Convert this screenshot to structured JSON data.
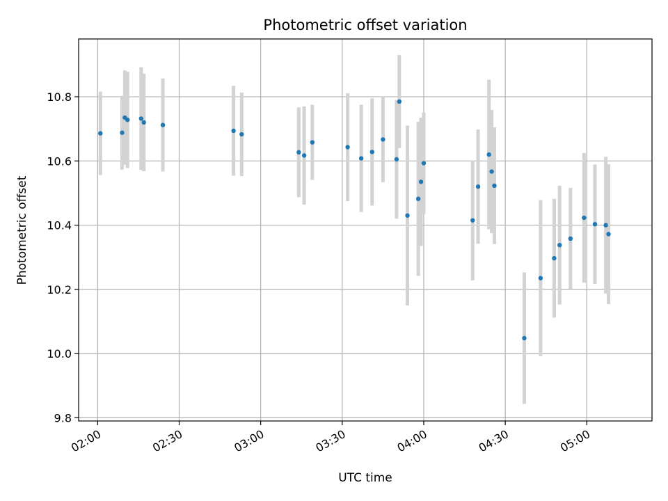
{
  "chart_data": {
    "type": "scatter",
    "title": "Photometric offset variation",
    "xlabel": "UTC time",
    "ylabel": "Photometric offset",
    "x_axis_type": "time",
    "xlim": [
      "01:53",
      "05:24"
    ],
    "ylim": [
      9.79,
      10.98
    ],
    "x_ticks": [
      "02:00",
      "02:30",
      "03:00",
      "03:30",
      "04:00",
      "04:30",
      "05:00"
    ],
    "y_ticks": [
      9.8,
      10.0,
      10.2,
      10.4,
      10.6,
      10.8
    ],
    "y_tick_labels": [
      "9.8",
      "10.0",
      "10.2",
      "10.4",
      "10.6",
      "10.8"
    ],
    "grid": true,
    "colors": {
      "point": "#1f77b4",
      "errorbar": "#d3d3d3",
      "grid": "#b0b0b0"
    },
    "series": [
      {
        "points": [
          {
            "x": "02:01",
            "y": 10.686,
            "err": 0.13
          },
          {
            "x": "02:09",
            "y": 10.688,
            "err": 0.115
          },
          {
            "x": "02:10",
            "y": 10.735,
            "err": 0.147
          },
          {
            "x": "02:11",
            "y": 10.728,
            "err": 0.15
          },
          {
            "x": "02:16",
            "y": 10.732,
            "err": 0.16
          },
          {
            "x": "02:17",
            "y": 10.72,
            "err": 0.152
          },
          {
            "x": "02:24",
            "y": 10.712,
            "err": 0.145
          },
          {
            "x": "02:50",
            "y": 10.694,
            "err": 0.14
          },
          {
            "x": "02:53",
            "y": 10.683,
            "err": 0.13
          },
          {
            "x": "03:14",
            "y": 10.627,
            "err": 0.14
          },
          {
            "x": "03:16",
            "y": 10.617,
            "err": 0.153
          },
          {
            "x": "03:19",
            "y": 10.658,
            "err": 0.117
          },
          {
            "x": "03:32",
            "y": 10.643,
            "err": 0.168
          },
          {
            "x": "03:37",
            "y": 10.608,
            "err": 0.167
          },
          {
            "x": "03:41",
            "y": 10.628,
            "err": 0.167
          },
          {
            "x": "03:45",
            "y": 10.667,
            "err": 0.133
          },
          {
            "x": "03:50",
            "y": 10.605,
            "err": 0.185
          },
          {
            "x": "03:51",
            "y": 10.785,
            "err": 0.145
          },
          {
            "x": "03:54",
            "y": 10.43,
            "err": 0.28
          },
          {
            "x": "03:58",
            "y": 10.482,
            "err": 0.24
          },
          {
            "x": "03:59",
            "y": 10.535,
            "err": 0.2
          },
          {
            "x": "04:00",
            "y": 10.593,
            "err": 0.158
          },
          {
            "x": "04:18",
            "y": 10.415,
            "err": 0.187
          },
          {
            "x": "04:20",
            "y": 10.52,
            "err": 0.178
          },
          {
            "x": "04:24",
            "y": 10.62,
            "err": 0.233
          },
          {
            "x": "04:25",
            "y": 10.567,
            "err": 0.192
          },
          {
            "x": "04:26",
            "y": 10.523,
            "err": 0.182
          },
          {
            "x": "04:37",
            "y": 10.048,
            "err": 0.205
          },
          {
            "x": "04:43",
            "y": 10.235,
            "err": 0.243
          },
          {
            "x": "04:48",
            "y": 10.297,
            "err": 0.185
          },
          {
            "x": "04:50",
            "y": 10.338,
            "err": 0.185
          },
          {
            "x": "04:54",
            "y": 10.358,
            "err": 0.158
          },
          {
            "x": "04:59",
            "y": 10.423,
            "err": 0.202
          },
          {
            "x": "05:03",
            "y": 10.403,
            "err": 0.186
          },
          {
            "x": "05:07",
            "y": 10.4,
            "err": 0.213
          },
          {
            "x": "05:08",
            "y": 10.372,
            "err": 0.218
          }
        ]
      }
    ]
  }
}
